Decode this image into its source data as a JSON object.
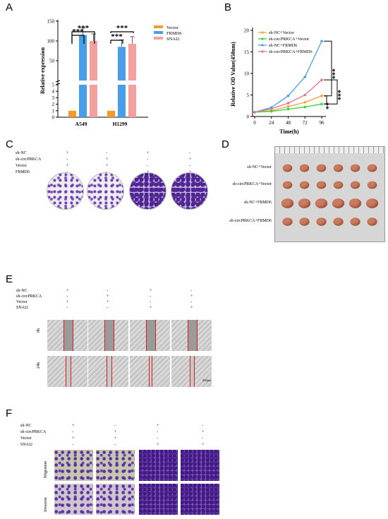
{
  "panel_labels": {
    "a": "A",
    "b": "B",
    "c": "C",
    "d": "D",
    "e": "E",
    "f": "F"
  },
  "chart_data": [
    {
      "type": "bar",
      "ylabel": "Relative expression",
      "categories": [
        "A549",
        "H1299"
      ],
      "series": [
        {
          "name": "Vector",
          "color": "#f29a2e",
          "values": [
            1,
            1
          ]
        },
        {
          "name": "FRMD6",
          "color": "#4a9ee8",
          "values": [
            115,
            85
          ]
        },
        {
          "name": "SNAI2",
          "color": "#f4a0a0",
          "values": [
            100,
            93
          ]
        }
      ],
      "broken_axis": {
        "lower_ticks": [
          "0",
          "1",
          "2",
          "3",
          "4",
          "5"
        ],
        "upper_ticks": [
          "50",
          "100",
          "150"
        ]
      },
      "significance": [
        "***",
        "***",
        "***",
        "***"
      ]
    },
    {
      "type": "line",
      "xlabel": "Time(h)",
      "ylabel": "Relative OD Value(450nm)",
      "x": [
        0,
        24,
        48,
        72,
        96
      ],
      "xticks": [
        "0",
        "24",
        "48",
        "72",
        "96"
      ],
      "yticks": [
        "0",
        "5",
        "10",
        "15",
        "20"
      ],
      "ylim": [
        0,
        20
      ],
      "series": [
        {
          "name": "sh-NC+Vector",
          "color": "#f2a23a",
          "values": [
            1,
            1.4,
            2.3,
            3.3,
            4.8
          ]
        },
        {
          "name": "sh-circPRKCA+Vector",
          "color": "#39d43a",
          "values": [
            1,
            1.2,
            1.7,
            2.2,
            2.9
          ]
        },
        {
          "name": "sh-NC+FRMD6",
          "color": "#4a9ee8",
          "values": [
            1,
            2.1,
            4.8,
            9.2,
            17.5
          ]
        },
        {
          "name": "sh-circPRKCA+FRMD6",
          "color": "#e86f95",
          "values": [
            1,
            1.8,
            3.1,
            5.0,
            8.5
          ]
        }
      ],
      "significance": [
        "***",
        "***",
        "**"
      ]
    }
  ],
  "panel_c": {
    "rows": [
      "sh-NC",
      "sh-circPRKCA",
      "Vector",
      "FRMD6"
    ],
    "signs": [
      [
        "+",
        "-",
        "+",
        "-"
      ],
      [
        "-",
        "+",
        "-",
        "+"
      ],
      [
        "+",
        "+",
        "-",
        "-"
      ],
      [
        "-",
        "-",
        "+",
        "+"
      ]
    ]
  },
  "panel_d": {
    "rows": [
      "sh-NC+Vector",
      "sh-circPRKCA+Vector",
      "sh-NC+FRMD6",
      "sh-circPRKCA+FRMD6"
    ]
  },
  "panel_e": {
    "rows": [
      "sh-NC",
      "sh-circPRKCA",
      "Vector",
      "SNAI2"
    ],
    "signs": [
      [
        "+",
        "-",
        "+",
        "-"
      ],
      [
        "-",
        "+",
        "-",
        "+"
      ],
      [
        "+",
        "+",
        "-",
        "-"
      ],
      [
        "-",
        "-",
        "+",
        "+"
      ]
    ],
    "time_labels": [
      "0h",
      "24h"
    ],
    "scale": "500μm"
  },
  "panel_f": {
    "rows": [
      "sh-NC",
      "sh-circPRKCA",
      "Vector",
      "SNAI2"
    ],
    "signs": [
      [
        "+",
        "-",
        "+",
        "-"
      ],
      [
        "-",
        "+",
        "-",
        "+"
      ],
      [
        "+",
        "+",
        "-",
        "-"
      ],
      [
        "-",
        "-",
        "+",
        "+"
      ]
    ],
    "row_labels": [
      "Migration",
      "Invasion"
    ]
  }
}
